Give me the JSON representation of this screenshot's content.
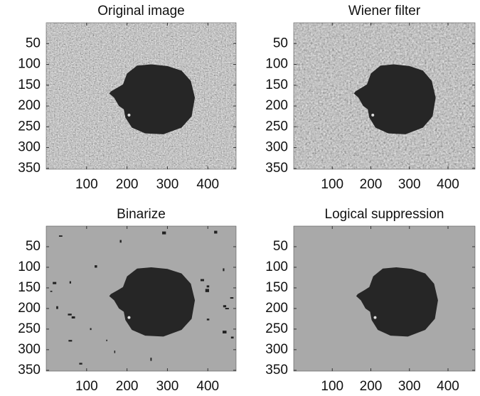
{
  "chart_data": [
    {
      "type": "image",
      "title": "Original image",
      "xlim": [
        0,
        470
      ],
      "ylim": [
        0,
        352
      ],
      "y_reversed": true,
      "xticks": [
        100,
        200,
        300,
        400
      ],
      "yticks": [
        50,
        100,
        150,
        200,
        250,
        300,
        350
      ]
    },
    {
      "type": "image",
      "title": "Wiener filter",
      "xlim": [
        0,
        470
      ],
      "ylim": [
        0,
        352
      ],
      "y_reversed": true,
      "xticks": [
        100,
        200,
        300,
        400
      ],
      "yticks": [
        50,
        100,
        150,
        200,
        250,
        300,
        350
      ]
    },
    {
      "type": "image",
      "title": "Binarize",
      "xlim": [
        0,
        470
      ],
      "ylim": [
        0,
        352
      ],
      "y_reversed": true,
      "xticks": [
        100,
        200,
        300,
        400
      ],
      "yticks": [
        50,
        100,
        150,
        200,
        250,
        300,
        350
      ]
    },
    {
      "type": "image",
      "title": "Logical suppression",
      "xlim": [
        0,
        470
      ],
      "ylim": [
        0,
        352
      ],
      "y_reversed": true,
      "xticks": [
        100,
        200,
        300,
        400
      ],
      "yticks": [
        50,
        100,
        150,
        200,
        250,
        300,
        350
      ]
    }
  ]
}
